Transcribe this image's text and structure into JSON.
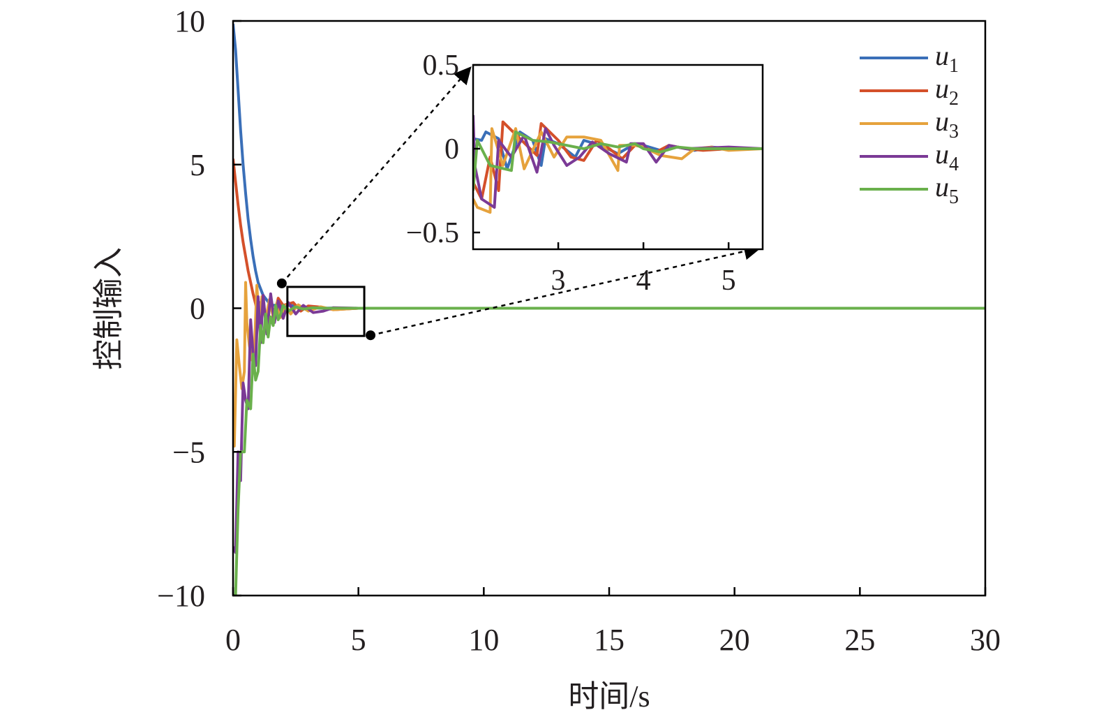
{
  "chart_data": {
    "type": "line",
    "xlabel": "时间/s",
    "ylabel": "控制输入",
    "xlim": [
      0,
      30
    ],
    "ylim": [
      -10,
      10
    ],
    "xticks": [
      "0",
      "5",
      "10",
      "15",
      "20",
      "25",
      "30"
    ],
    "xtick_values": [
      0,
      5,
      10,
      15,
      20,
      25,
      30
    ],
    "yticks": [
      "10",
      "5",
      "0",
      "−5",
      "−10"
    ],
    "ytick_values": [
      10,
      5,
      0,
      -5,
      -10
    ],
    "grid": false,
    "legend_position": "top-right",
    "series": [
      {
        "name": "u",
        "subscript": "1",
        "color": "#3a6fb8",
        "x": [
          0,
          0.1,
          0.2,
          0.3,
          0.4,
          0.5,
          0.6,
          0.7,
          0.8,
          0.9,
          1.0,
          1.2,
          1.4,
          1.6,
          1.8,
          2.0,
          2.3,
          2.6,
          3.0,
          3.5,
          4.0,
          5.0,
          30
        ],
        "y": [
          9.9,
          9.0,
          7.6,
          6.2,
          5.0,
          4.0,
          3.1,
          2.4,
          1.8,
          1.3,
          0.9,
          0.45,
          0.22,
          0.1,
          0.12,
          0.08,
          0.1,
          0.05,
          0.02,
          0.0,
          0.01,
          0.0,
          0.0
        ]
      },
      {
        "name": "u",
        "subscript": "2",
        "color": "#d4502a",
        "x": [
          0,
          0.1,
          0.2,
          0.3,
          0.4,
          0.5,
          0.6,
          0.7,
          0.8,
          0.9,
          1.0,
          1.1,
          1.2,
          1.35,
          1.5,
          1.65,
          1.8,
          2.0,
          2.4,
          2.7,
          3.0,
          3.5,
          4.0,
          5.0,
          30
        ],
        "y": [
          5.2,
          4.4,
          3.6,
          2.9,
          2.3,
          1.8,
          1.3,
          0.9,
          0.5,
          0.15,
          -0.3,
          0.2,
          0.1,
          -0.4,
          0.25,
          -0.3,
          0.35,
          0.1,
          0.2,
          -0.1,
          0.08,
          0.04,
          -0.05,
          0.0,
          0.0
        ]
      },
      {
        "name": "u",
        "subscript": "3",
        "color": "#e6a23c",
        "x": [
          0,
          0.05,
          0.15,
          0.25,
          0.35,
          0.45,
          0.5,
          0.55,
          0.65,
          0.75,
          0.85,
          0.95,
          1.05,
          1.15,
          1.3,
          1.45,
          1.6,
          1.75,
          1.9,
          2.1,
          2.3,
          2.6,
          3.0,
          3.5,
          4.0,
          5.0,
          30
        ],
        "y": [
          -4.5,
          -4.8,
          -1.1,
          -2.0,
          -2.8,
          -2.2,
          0.9,
          -0.5,
          -1.3,
          -1.8,
          -1.5,
          0.8,
          -0.6,
          0.4,
          -0.4,
          0.3,
          -0.3,
          0.2,
          -0.32,
          0.1,
          -0.2,
          0.12,
          -0.1,
          0.05,
          -0.05,
          0.0,
          0.0
        ]
      },
      {
        "name": "u",
        "subscript": "4",
        "color": "#7b3a96",
        "x": [
          0,
          0.1,
          0.2,
          0.3,
          0.4,
          0.5,
          0.6,
          0.7,
          0.8,
          0.9,
          1.0,
          1.1,
          1.2,
          1.35,
          1.5,
          1.65,
          1.8,
          2.0,
          2.2,
          2.5,
          2.8,
          3.2,
          3.6,
          4.0,
          5.0,
          30
        ],
        "y": [
          -8.3,
          -8.5,
          -5.0,
          -6.0,
          -2.6,
          -3.2,
          -3.5,
          -0.4,
          -1.6,
          -2.0,
          0.4,
          -1.2,
          0.45,
          -0.9,
          0.5,
          -0.5,
          0.25,
          -0.35,
          0.2,
          -0.2,
          0.1,
          -0.15,
          -0.1,
          0.02,
          0.0,
          0.0
        ]
      },
      {
        "name": "u",
        "subscript": "5",
        "color": "#6ab04c",
        "x": [
          0,
          0.1,
          0.2,
          0.3,
          0.45,
          0.55,
          0.7,
          0.8,
          0.9,
          1.0,
          1.1,
          1.2,
          1.3,
          1.4,
          1.5,
          1.6,
          1.7,
          1.8,
          1.9,
          2.0,
          2.2,
          2.5,
          2.8,
          3.2,
          3.6,
          4.0,
          5.0,
          30
        ],
        "y": [
          -10.0,
          -10.0,
          -7.0,
          -5.0,
          -5.0,
          -3.2,
          -3.5,
          -1.6,
          -2.5,
          -2.2,
          -0.6,
          -1.2,
          -0.2,
          -1.0,
          -0.3,
          -0.6,
          0.1,
          -0.4,
          -0.2,
          0.1,
          -0.1,
          0.05,
          -0.03,
          0.02,
          0.0,
          0.0,
          0.0,
          0.0
        ]
      }
    ],
    "inset": {
      "xlim": [
        2.0,
        5.4
      ],
      "ylim": [
        -0.6,
        0.5
      ],
      "xticks": [
        "3",
        "4",
        "5"
      ],
      "xtick_values": [
        3,
        4,
        5
      ],
      "yticks": [
        "0.5",
        "0",
        "−0.5"
      ],
      "ytick_values": [
        0.5,
        0,
        -0.5
      ],
      "zoom_region": {
        "x": [
          2.0,
          5.4
        ],
        "y": [
          -0.6,
          0.5
        ]
      },
      "series": [
        {
          "x": [
            2.0,
            2.1,
            2.15,
            2.3,
            2.4,
            2.55,
            2.7,
            2.8,
            2.85,
            3.0,
            3.2,
            3.3,
            3.5,
            3.7,
            3.9,
            4.0,
            4.2,
            4.4,
            4.6,
            4.8,
            5.0,
            5.4
          ],
          "y": [
            0.06,
            0.05,
            0.1,
            0.06,
            -0.12,
            0.1,
            0.05,
            -0.1,
            0.06,
            0.03,
            -0.05,
            0.05,
            0.02,
            -0.03,
            0.03,
            0.02,
            -0.01,
            0.01,
            -0.01,
            0.01,
            0.0,
            0.0
          ]
        },
        {
          "x": [
            2.0,
            2.1,
            2.2,
            2.3,
            2.35,
            2.55,
            2.75,
            2.8,
            3.0,
            3.15,
            3.3,
            3.45,
            3.6,
            3.75,
            3.9,
            4.0,
            4.15,
            4.3,
            4.5,
            4.7,
            5.0,
            5.4
          ],
          "y": [
            -0.2,
            -0.3,
            -0.05,
            -0.25,
            0.16,
            0.06,
            -0.04,
            0.15,
            0.05,
            -0.05,
            -0.07,
            0.05,
            0.0,
            -0.06,
            0.02,
            0.01,
            -0.02,
            0.02,
            0.0,
            -0.01,
            0.0,
            0.0
          ]
        },
        {
          "x": [
            2.0,
            2.05,
            2.2,
            2.22,
            2.35,
            2.5,
            2.6,
            2.8,
            2.95,
            3.1,
            3.3,
            3.5,
            3.7,
            3.72,
            3.9,
            4.0,
            4.2,
            4.45,
            4.6,
            4.8,
            5.0,
            5.4
          ],
          "y": [
            -0.3,
            -0.35,
            -0.38,
            0.12,
            -0.1,
            0.12,
            -0.12,
            0.1,
            -0.05,
            0.07,
            0.07,
            0.05,
            -0.13,
            0.02,
            0.02,
            0.01,
            -0.04,
            -0.06,
            0.0,
            0.01,
            -0.01,
            0.0
          ]
        },
        {
          "x": [
            2.0,
            2.02,
            2.1,
            2.25,
            2.3,
            2.45,
            2.6,
            2.75,
            2.85,
            2.95,
            3.1,
            3.25,
            3.4,
            3.6,
            3.8,
            3.85,
            4.0,
            4.15,
            4.3,
            4.5,
            5.0,
            5.4
          ],
          "y": [
            0.2,
            -0.1,
            -0.3,
            -0.35,
            0.05,
            -0.05,
            0.08,
            -0.14,
            0.12,
            0.02,
            -0.1,
            -0.05,
            0.04,
            -0.03,
            -0.08,
            0.03,
            0.03,
            -0.08,
            0.02,
            0.0,
            0.01,
            0.0
          ]
        },
        {
          "x": [
            2.0,
            2.05,
            2.2,
            2.45,
            2.5,
            2.7,
            2.9,
            3.1,
            3.3,
            3.5,
            3.7,
            3.9,
            4.0,
            4.2,
            4.4,
            4.6,
            4.8,
            5.0,
            5.4
          ],
          "y": [
            -0.25,
            0.05,
            -0.1,
            -0.13,
            0.1,
            0.05,
            0.04,
            0.02,
            0.0,
            0.03,
            0.01,
            0.03,
            0.0,
            -0.02,
            0.01,
            0.0,
            0.0,
            0.0,
            0.0
          ]
        }
      ]
    }
  }
}
